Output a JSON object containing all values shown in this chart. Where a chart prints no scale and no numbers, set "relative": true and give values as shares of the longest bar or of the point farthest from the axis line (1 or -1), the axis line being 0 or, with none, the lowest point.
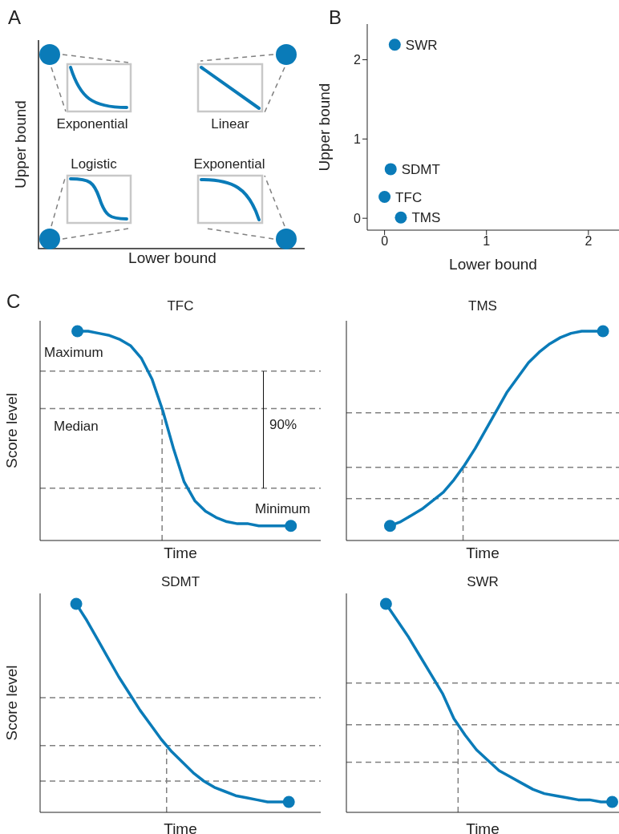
{
  "chart_data": [
    {
      "type": "other",
      "xlabel": "Lower bound",
      "ylabel": "Upper bound",
      "annotations": [
        "A",
        "Exponential",
        "Linear",
        "Logistic",
        "Exponential"
      ]
    },
    {
      "type": "scatter",
      "xlabel": "Lower bound",
      "ylabel": "Upper bound",
      "annotations": [
        "B"
      ],
      "xlim": [
        -0.17,
        2.3
      ],
      "ylim": [
        -0.15,
        2.45
      ],
      "xticks": [
        0,
        1,
        2
      ],
      "yticks": [
        0,
        1,
        2
      ],
      "marker": "circle",
      "series": [
        {
          "name": "SWR",
          "color": "#0a7bb8",
          "x": [
            0.1
          ],
          "values": [
            2.19
          ]
        },
        {
          "name": "SDMT",
          "color": "#0a7bb8",
          "x": [
            0.06
          ],
          "values": [
            0.62
          ]
        },
        {
          "name": "TFC",
          "color": "#0a7bb8",
          "x": [
            0.0
          ],
          "values": [
            0.27
          ]
        },
        {
          "name": "TMS",
          "color": "#0a7bb8",
          "x": [
            0.16
          ],
          "values": [
            0.01
          ]
        }
      ]
    },
    {
      "type": "line",
      "title": "TFC",
      "xlabel": "Time",
      "ylabel": "Score level",
      "relative": true,
      "line_style": "solid",
      "categories": [
        null,
        null,
        null,
        null,
        null,
        null,
        null,
        null,
        null,
        null,
        null,
        null,
        null,
        null,
        null,
        null,
        null,
        null,
        null,
        null,
        null
      ],
      "annotations": [
        "C",
        "Maximum",
        "Minimum",
        "90%"
      ],
      "ref_lines": [
        {
          "axis": "y",
          "value": 0.81,
          "color": "#808080",
          "line_style": "dashed"
        },
        {
          "axis": "y",
          "value": 0.63,
          "label": "Median",
          "color": "#808080",
          "line_style": "dashed"
        },
        {
          "axis": "y",
          "value": 0.25,
          "color": "#808080",
          "line_style": "dashed"
        }
      ],
      "series": [
        {
          "color": "#0a7bb8",
          "values": [
            1,
            1.0,
            0.99,
            0.98,
            0.96,
            0.93,
            0.87,
            0.77,
            0.62,
            0.44,
            0.28,
            0.19,
            0.14,
            0.11,
            0.09,
            0.08,
            0.08,
            0.07,
            0.07,
            0.07,
            0.07
          ]
        }
      ]
    },
    {
      "type": "line",
      "title": "TMS",
      "xlabel": "Time",
      "relative": true,
      "line_style": "solid",
      "categories": [
        null,
        null,
        null,
        null,
        null,
        null,
        null,
        null,
        null,
        null,
        null,
        null,
        null,
        null,
        null,
        null,
        null,
        null,
        null,
        null,
        null
      ],
      "ref_lines": [
        {
          "axis": "y",
          "value": 0.61,
          "color": "#808080",
          "line_style": "dashed"
        },
        {
          "axis": "y",
          "value": 0.35,
          "color": "#808080",
          "line_style": "dashed"
        },
        {
          "axis": "y",
          "value": 0.2,
          "color": "#808080",
          "line_style": "dashed"
        }
      ],
      "series": [
        {
          "color": "#0a7bb8",
          "values": [
            0.07,
            0.09,
            0.12,
            0.15,
            0.19,
            0.23,
            0.29,
            0.36,
            0.44,
            0.53,
            0.62,
            0.71,
            0.78,
            0.85,
            0.9,
            0.94,
            0.97,
            0.99,
            1.0,
            1.0,
            1
          ]
        }
      ]
    },
    {
      "type": "line",
      "title": "SDMT",
      "xlabel": "Time",
      "ylabel": "Score level",
      "relative": true,
      "line_style": "solid",
      "categories": [
        null,
        null,
        null,
        null,
        null,
        null,
        null,
        null,
        null,
        null,
        null,
        null,
        null,
        null,
        null,
        null,
        null,
        null,
        null,
        null,
        null
      ],
      "ref_lines": [
        {
          "axis": "y",
          "value": 0.55,
          "color": "#808080",
          "line_style": "dashed"
        },
        {
          "axis": "y",
          "value": 0.32,
          "color": "#808080",
          "line_style": "dashed"
        },
        {
          "axis": "y",
          "value": 0.15,
          "color": "#808080",
          "line_style": "dashed"
        }
      ],
      "series": [
        {
          "color": "#0a7bb8",
          "values": [
            1,
            0.92,
            0.83,
            0.74,
            0.65,
            0.57,
            0.49,
            0.42,
            0.35,
            0.29,
            0.24,
            0.19,
            0.15,
            0.12,
            0.1,
            0.08,
            0.07,
            0.06,
            0.05,
            0.05,
            0.05
          ]
        }
      ]
    },
    {
      "type": "line",
      "title": "SWR",
      "xlabel": "Time",
      "relative": true,
      "line_style": "solid",
      "categories": [
        null,
        null,
        null,
        null,
        null,
        null,
        null,
        null,
        null,
        null,
        null,
        null,
        null,
        null,
        null,
        null,
        null,
        null,
        null,
        null,
        null
      ],
      "ref_lines": [
        {
          "axis": "y",
          "value": 0.62,
          "color": "#808080",
          "line_style": "dashed"
        },
        {
          "axis": "y",
          "value": 0.42,
          "color": "#808080",
          "line_style": "dashed"
        },
        {
          "axis": "y",
          "value": 0.24,
          "color": "#808080",
          "line_style": "dashed"
        }
      ],
      "series": [
        {
          "color": "#0a7bb8",
          "values": [
            1,
            0.92,
            0.84,
            0.75,
            0.66,
            0.57,
            0.45,
            0.37,
            0.3,
            0.25,
            0.2,
            0.17,
            0.14,
            0.11,
            0.09,
            0.08,
            0.07,
            0.06,
            0.06,
            0.05,
            0.05
          ]
        }
      ]
    }
  ]
}
